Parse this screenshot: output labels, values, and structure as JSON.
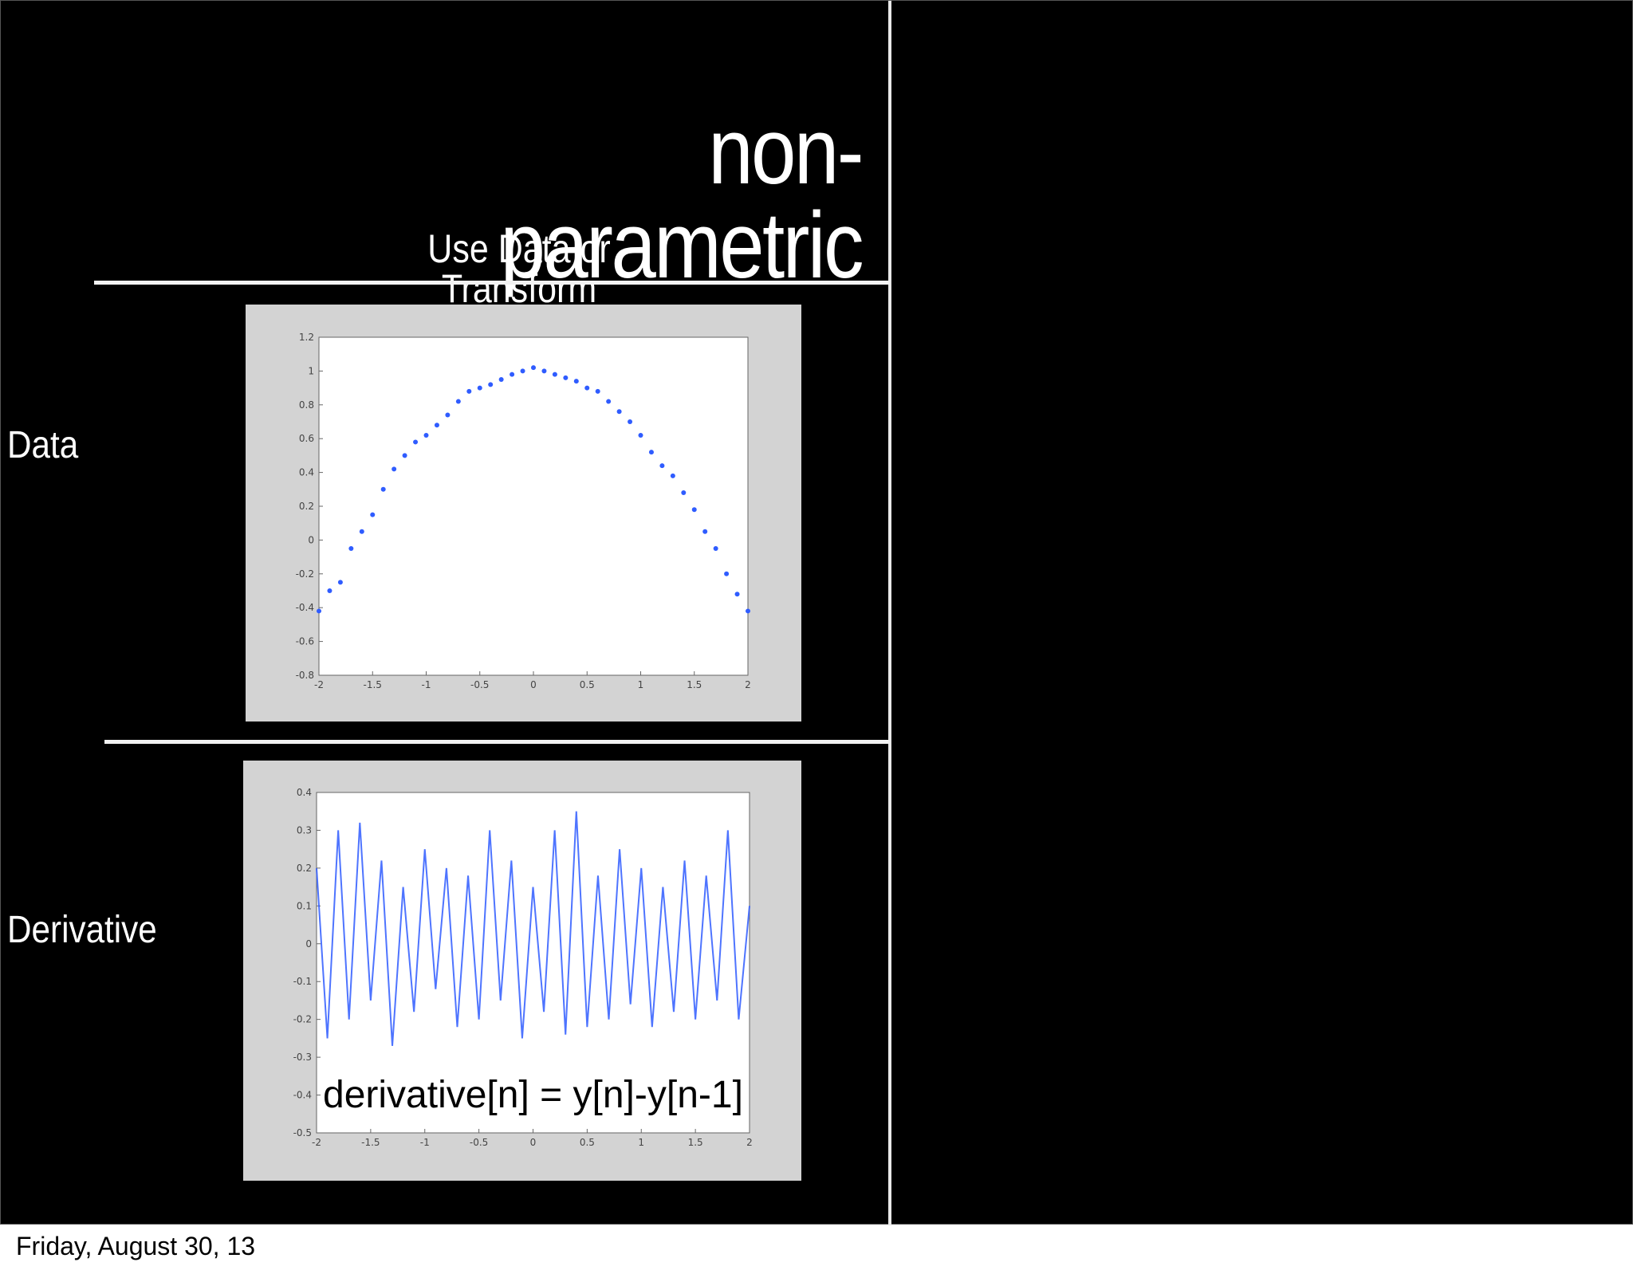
{
  "slide": {
    "title": "non-parametric",
    "subtitle": "Use Data or Transform",
    "row_labels": [
      "Data",
      "Derivative"
    ],
    "footer_date": "Friday, August 30, 13",
    "colors": {
      "background": "#000000",
      "text": "#ffffff",
      "series": "#2f5cff",
      "figure_bg": "#d3d3d3"
    }
  },
  "chart_data": [
    {
      "type": "scatter",
      "title": "",
      "xlabel": "",
      "ylabel": "",
      "xlim": [
        -2,
        2
      ],
      "ylim": [
        -0.8,
        1.2
      ],
      "xticks": [
        "-2",
        "-1.5",
        "-1",
        "-0.5",
        "0",
        "0.5",
        "1",
        "1.5",
        "2"
      ],
      "yticks": [
        "1.2",
        "1",
        "0.8",
        "0.6",
        "0.4",
        "0.2",
        "0",
        "-0.2",
        "-0.4",
        "-0.6",
        "-0.8"
      ],
      "grid": false,
      "series": [
        {
          "x": [
            -2.0,
            -1.9,
            -1.8,
            -1.7,
            -1.6,
            -1.5,
            -1.4,
            -1.3,
            -1.2,
            -1.1,
            -1.0,
            -0.9,
            -0.8,
            -0.7,
            -0.6,
            -0.5,
            -0.4,
            -0.3,
            -0.2,
            -0.1,
            0.0,
            0.1,
            0.2,
            0.3,
            0.4,
            0.5,
            0.6,
            0.7,
            0.8,
            0.9,
            1.0,
            1.1,
            1.2,
            1.3,
            1.4,
            1.5,
            1.6,
            1.7,
            1.8,
            1.9,
            2.0
          ],
          "y": [
            -0.42,
            -0.3,
            -0.25,
            -0.05,
            0.05,
            0.15,
            0.3,
            0.42,
            0.5,
            0.58,
            0.62,
            0.68,
            0.74,
            0.82,
            0.88,
            0.9,
            0.92,
            0.95,
            0.98,
            1.0,
            1.02,
            1.0,
            0.98,
            0.96,
            0.94,
            0.9,
            0.88,
            0.82,
            0.76,
            0.7,
            0.62,
            0.52,
            0.44,
            0.38,
            0.28,
            0.18,
            0.05,
            -0.05,
            -0.2,
            -0.32,
            -0.42
          ]
        }
      ]
    },
    {
      "type": "line",
      "title": "",
      "xlabel": "",
      "ylabel": "",
      "xlim": [
        -2,
        2
      ],
      "ylim": [
        -0.5,
        0.4
      ],
      "xticks": [
        "-2",
        "-1.5",
        "-1",
        "-0.5",
        "0",
        "0.5",
        "1",
        "1.5",
        "2"
      ],
      "yticks": [
        "0.4",
        "0.3",
        "0.2",
        "0.1",
        "0",
        "-0.1",
        "-0.2",
        "-0.3",
        "-0.4",
        "-0.5"
      ],
      "grid": false,
      "annotation": "derivative[n] = y[n]-y[n-1]",
      "series": [
        {
          "x": [
            -2.0,
            -1.9,
            -1.8,
            -1.7,
            -1.6,
            -1.5,
            -1.4,
            -1.3,
            -1.2,
            -1.1,
            -1.0,
            -0.9,
            -0.8,
            -0.7,
            -0.6,
            -0.5,
            -0.4,
            -0.3,
            -0.2,
            -0.1,
            0.0,
            0.1,
            0.2,
            0.3,
            0.4,
            0.5,
            0.6,
            0.7,
            0.8,
            0.9,
            1.0,
            1.1,
            1.2,
            1.3,
            1.4,
            1.5,
            1.6,
            1.7,
            1.8,
            1.9,
            2.0
          ],
          "y": [
            0.2,
            -0.25,
            0.3,
            -0.2,
            0.32,
            -0.15,
            0.22,
            -0.27,
            0.15,
            -0.18,
            0.25,
            -0.12,
            0.2,
            -0.22,
            0.18,
            -0.2,
            0.3,
            -0.15,
            0.22,
            -0.25,
            0.15,
            -0.18,
            0.3,
            -0.24,
            0.35,
            -0.22,
            0.18,
            -0.2,
            0.25,
            -0.16,
            0.2,
            -0.22,
            0.15,
            -0.18,
            0.22,
            -0.2,
            0.18,
            -0.15,
            0.3,
            -0.2,
            0.1
          ]
        }
      ]
    }
  ]
}
